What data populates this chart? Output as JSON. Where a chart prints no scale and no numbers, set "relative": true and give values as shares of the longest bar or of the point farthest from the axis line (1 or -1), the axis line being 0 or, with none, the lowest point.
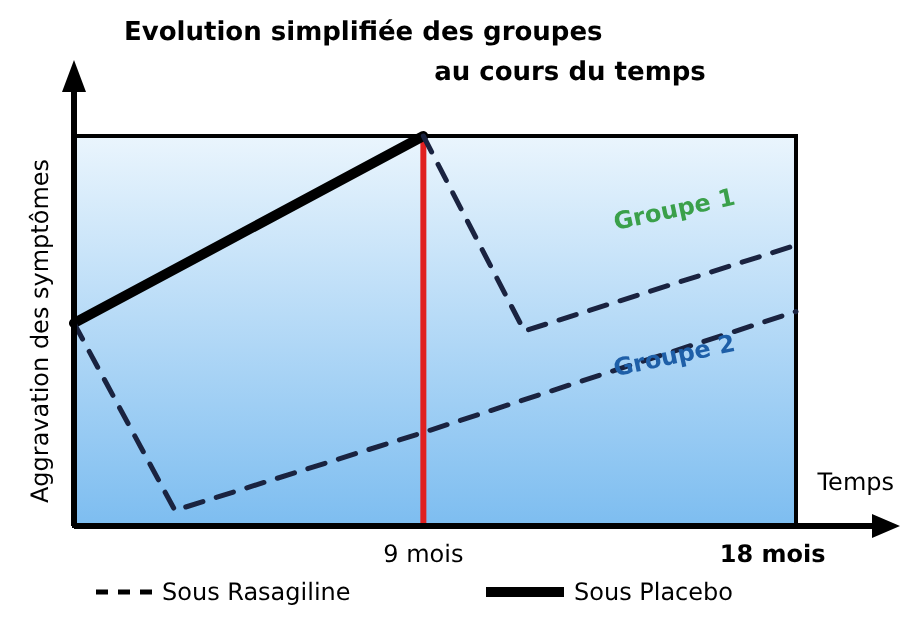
{
  "chart_data": {
    "type": "line",
    "relative": true,
    "title": "Evolution simplifiée des groupes au cours du temps",
    "xlabel": "Temps",
    "ylabel": "Aggravation des symptômes",
    "xlim": [
      0,
      18.6
    ],
    "xticks": [
      {
        "value": 9,
        "label": "9 mois"
      },
      {
        "value": 18,
        "label": "18 mois"
      }
    ],
    "series": [
      {
        "name": "Sous Placebo",
        "color": "#000000",
        "line_style": "solid",
        "x": [
          0,
          9
        ],
        "values": [
          0.52,
          1
        ]
      },
      {
        "name": "Groupe 1",
        "color": "#1a2340",
        "line_style": "dashed",
        "x": [
          9,
          11.6,
          18.6
        ],
        "values": [
          1,
          0.5,
          0.72
        ]
      },
      {
        "name": "Groupe 2",
        "color": "#1a2340",
        "line_style": "dashed",
        "x": [
          0,
          2.6,
          9,
          18.6
        ],
        "values": [
          0.52,
          0.04,
          0.24,
          0.55
        ]
      }
    ],
    "ref_lines": [
      {
        "axis": "x",
        "value": 9,
        "color": "#e02020"
      }
    ],
    "annotations": [
      "Sous Rasagiline"
    ],
    "legend": "bottom"
  }
}
